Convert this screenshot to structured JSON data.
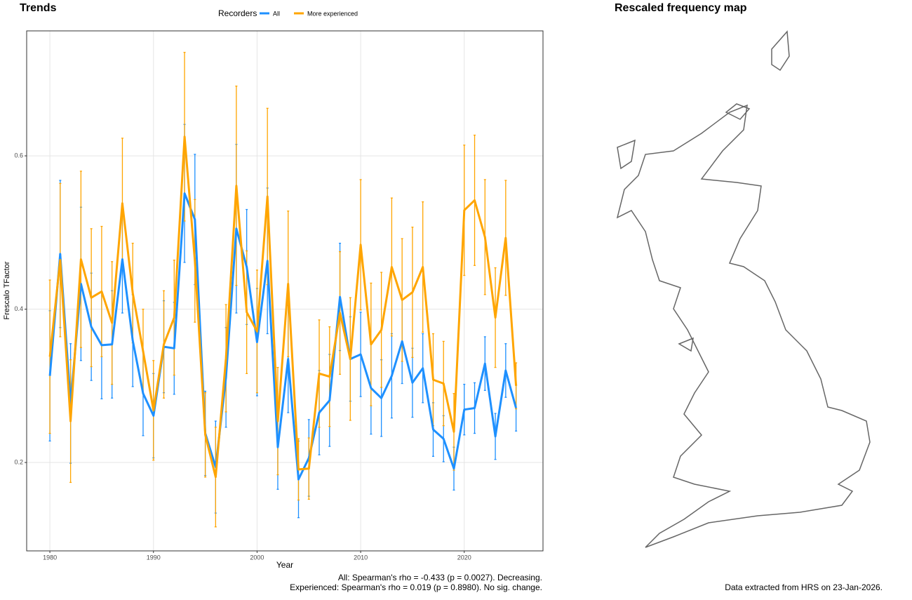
{
  "chart_data": {
    "type": "line",
    "title": "Trends",
    "x_label": "Year",
    "y_label": "Frescalo TFactor",
    "legend_title": "Recorders",
    "legend_position": "top",
    "x": [
      1980,
      1981,
      1982,
      1983,
      1984,
      1985,
      1986,
      1987,
      1988,
      1989,
      1990,
      1991,
      1992,
      1993,
      1994,
      1995,
      1996,
      1997,
      1998,
      1999,
      2000,
      2001,
      2002,
      2003,
      2004,
      2005,
      2006,
      2007,
      2008,
      2009,
      2010,
      2011,
      2012,
      2013,
      2014,
      2015,
      2016,
      2017,
      2018,
      2019,
      2020,
      2021,
      2022,
      2023,
      2024,
      2025
    ],
    "series": [
      {
        "name": "All",
        "color": "#1e90ff",
        "values": [
          0.313,
          0.472,
          0.277,
          0.433,
          0.377,
          0.353,
          0.354,
          0.465,
          0.359,
          0.29,
          0.261,
          0.351,
          0.349,
          0.551,
          0.517,
          0.238,
          0.194,
          0.311,
          0.505,
          0.455,
          0.357,
          0.463,
          0.22,
          0.335,
          0.178,
          0.206,
          0.265,
          0.281,
          0.416,
          0.335,
          0.341,
          0.297,
          0.284,
          0.313,
          0.358,
          0.304,
          0.323,
          0.243,
          0.231,
          0.192,
          0.269,
          0.271,
          0.329,
          0.234,
          0.32,
          0.271
        ],
        "errors": [
          0.085,
          0.096,
          0.078,
          0.1,
          0.07,
          0.07,
          0.07,
          0.07,
          0.06,
          0.055,
          0.055,
          0.06,
          0.06,
          0.09,
          0.085,
          0.055,
          0.06,
          0.065,
          0.11,
          0.075,
          0.07,
          0.095,
          0.055,
          0.07,
          0.05,
          0.05,
          0.055,
          0.06,
          0.07,
          0.055,
          0.055,
          0.06,
          0.05,
          0.055,
          0.055,
          0.045,
          0.045,
          0.035,
          0.03,
          0.028,
          0.033,
          0.033,
          0.035,
          0.03,
          0.035,
          0.03
        ]
      },
      {
        "name": "More experienced",
        "color": "#ffa500",
        "values": [
          0.338,
          0.464,
          0.254,
          0.465,
          0.415,
          0.423,
          0.382,
          0.538,
          0.421,
          0.345,
          0.268,
          0.354,
          0.389,
          0.625,
          0.463,
          0.236,
          0.181,
          0.336,
          0.561,
          0.396,
          0.371,
          0.547,
          0.254,
          0.433,
          0.191,
          0.192,
          0.316,
          0.312,
          0.395,
          0.335,
          0.484,
          0.354,
          0.373,
          0.455,
          0.412,
          0.422,
          0.455,
          0.308,
          0.303,
          0.24,
          0.529,
          0.542,
          0.494,
          0.389,
          0.493,
          0.3
        ],
        "errors": [
          0.1,
          0.1,
          0.08,
          0.115,
          0.09,
          0.085,
          0.08,
          0.085,
          0.065,
          0.055,
          0.065,
          0.07,
          0.075,
          0.11,
          0.08,
          0.055,
          0.065,
          0.07,
          0.13,
          0.08,
          0.08,
          0.115,
          0.07,
          0.095,
          0.04,
          0.04,
          0.07,
          0.065,
          0.08,
          0.08,
          0.085,
          0.08,
          0.075,
          0.09,
          0.08,
          0.085,
          0.085,
          0.06,
          0.055,
          0.05,
          0.085,
          0.085,
          0.075,
          0.065,
          0.075,
          0.03
        ]
      }
    ],
    "xlim": [
      1977.76,
      2027.6
    ],
    "xticks": [
      1980,
      1990,
      2000,
      2010,
      2020
    ],
    "ylim": [
      0.0847,
      0.763
    ],
    "yticks": [
      0.2,
      0.4,
      0.6
    ],
    "grid": true,
    "annotations": [
      "All: Spearman's rho = -0.433 (p = 0.0027). Decreasing.",
      "Experienced: Spearman's rho = 0.019 (p = 0.8980). No sig. change."
    ]
  },
  "map": {
    "title": "Rescaled frequency map",
    "caption": "Data extracted from HRS on 23-Jan-2026."
  }
}
